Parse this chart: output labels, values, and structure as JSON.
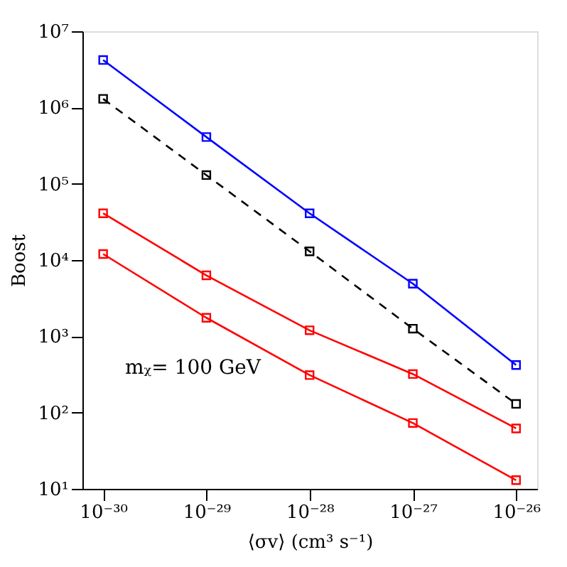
{
  "chart_data": {
    "type": "line",
    "xlabel": "⟨σv⟩ (cm³ s⁻¹)",
    "ylabel": "Boost",
    "x": [
      1e-30,
      1e-29,
      1e-28,
      1e-27,
      1e-26
    ],
    "series": [
      {
        "color": "#0000ff",
        "line_style": "solid",
        "values": [
          4200000.0,
          410000.0,
          41000.0,
          4900.0,
          420.0
        ]
      },
      {
        "color": "#000000",
        "line_style": "dashed",
        "values": [
          1300000.0,
          130000.0,
          13000.0,
          1260.0,
          130.0
        ]
      },
      {
        "color": "#ff0000",
        "line_style": "solid",
        "values": [
          41000.0,
          6300.0,
          1200.0,
          320.0,
          62
        ]
      },
      {
        "color": "#ff0000",
        "line_style": "solid",
        "values": [
          12000.0,
          1750.0,
          310.0,
          73,
          13
        ]
      }
    ],
    "log": "xy",
    "marker": "square",
    "grid": false,
    "xlim": [
      6.3e-31,
      1.6e-26
    ],
    "ylim": [
      10,
      10000000.0
    ],
    "xticks": [
      {
        "value": 1e-30,
        "label": "10⁻³⁰"
      },
      {
        "value": 1e-29,
        "label": "10⁻²⁹"
      },
      {
        "value": 1e-28,
        "label": "10⁻²⁸"
      },
      {
        "value": 1e-27,
        "label": "10⁻²⁷"
      },
      {
        "value": 1e-26,
        "label": "10⁻²⁶"
      }
    ],
    "yticks": [
      {
        "value": 10,
        "label": "10¹"
      },
      {
        "value": 100,
        "label": "10²"
      },
      {
        "value": 1000,
        "label": "10³"
      },
      {
        "value": 10000,
        "label": "10⁴"
      },
      {
        "value": 100000,
        "label": "10⁵"
      },
      {
        "value": 1000000,
        "label": "10⁶"
      },
      {
        "value": 10000000,
        "label": "10⁷"
      }
    ],
    "annotations": [
      "mᵪ= 100 GeV"
    ]
  }
}
